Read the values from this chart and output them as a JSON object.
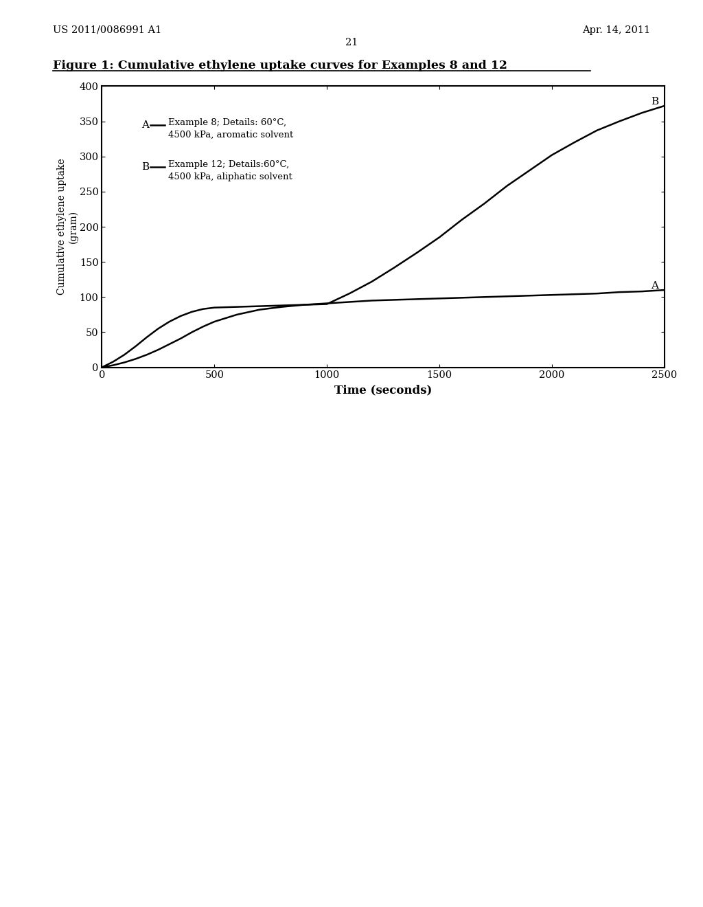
{
  "title": "Figure 1: Cumulative ethylene uptake curves for Examples 8 and 12",
  "header_left": "US 2011/0086991 A1",
  "header_right": "Apr. 14, 2011",
  "page_number": "21",
  "xlabel": "Time (seconds)",
  "ylabel": "Cumulative ethylene uptake\n(gram)",
  "xlim": [
    0,
    2500
  ],
  "ylim": [
    0,
    400
  ],
  "xticks": [
    0,
    500,
    1000,
    1500,
    2000,
    2500
  ],
  "yticks": [
    0,
    50,
    100,
    150,
    200,
    250,
    300,
    350,
    400
  ],
  "legend_A_label1": "Example 8; Details: 60°C,",
  "legend_A_label2": "4500 kPa, aromatic solvent",
  "legend_B_label1": "Example 12; Details:60°C,",
  "legend_B_label2": "4500 kPa, aliphatic solvent",
  "curve_A_x": [
    0,
    50,
    100,
    150,
    200,
    250,
    300,
    350,
    400,
    450,
    500,
    600,
    700,
    800,
    900,
    1000,
    1100,
    1200,
    1300,
    1400,
    1500,
    1600,
    1700,
    1800,
    1900,
    2000,
    2100,
    2200,
    2300,
    2400,
    2500
  ],
  "curve_A_y": [
    0,
    3,
    7,
    12,
    18,
    25,
    33,
    41,
    50,
    58,
    65,
    75,
    82,
    86,
    89,
    91,
    93,
    95,
    96,
    97,
    98,
    99,
    100,
    101,
    102,
    103,
    104,
    105,
    107,
    108,
    110
  ],
  "curve_B_x": [
    0,
    50,
    100,
    150,
    200,
    250,
    300,
    350,
    400,
    450,
    500,
    600,
    700,
    800,
    900,
    1000,
    1100,
    1200,
    1300,
    1400,
    1500,
    1600,
    1700,
    1800,
    1900,
    2000,
    2100,
    2200,
    2300,
    2400,
    2500
  ],
  "curve_B_y": [
    0,
    8,
    18,
    30,
    43,
    55,
    65,
    73,
    79,
    83,
    85,
    86,
    87,
    88,
    89,
    90,
    105,
    122,
    142,
    163,
    185,
    210,
    233,
    258,
    280,
    302,
    320,
    337,
    350,
    362,
    372
  ],
  "bg_color": "#ffffff",
  "line_color": "#000000"
}
